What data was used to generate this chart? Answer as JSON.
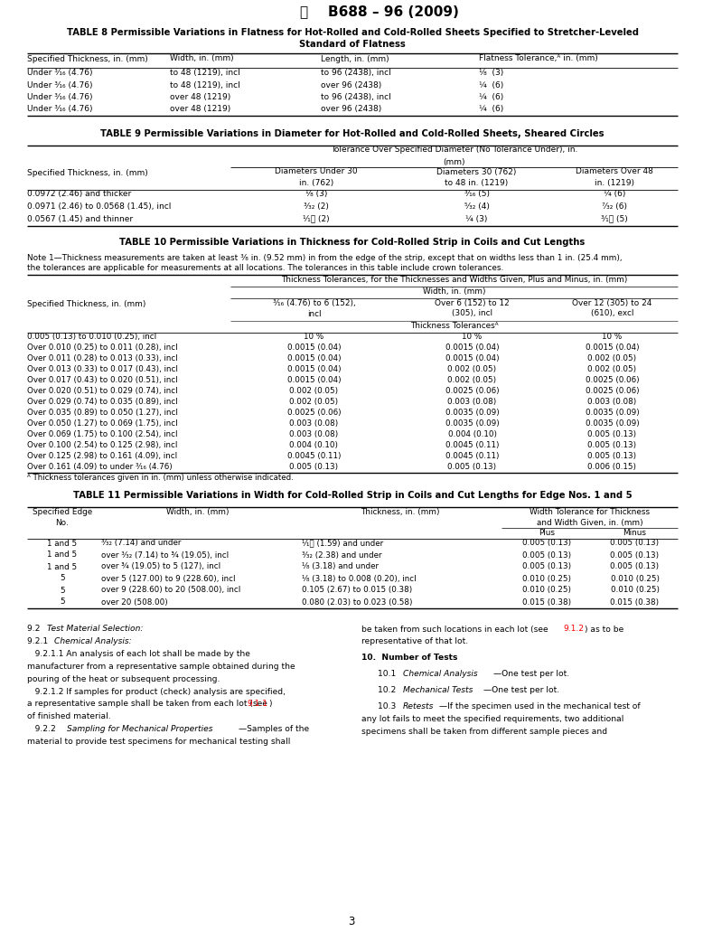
{
  "page_width": 7.78,
  "page_height": 10.41,
  "background_color": "#ffffff",
  "header_title": "B688 – 96 (2009)",
  "page_number": "3",
  "table8_title_line1": "TABLE 8 Permissible Variations in Flatness for Hot-Rolled and Cold-Rolled Sheets Specified to Stretcher-Leveled",
  "table8_title_line2": "Standard of Flatness",
  "table8_headers": [
    "Specified Thickness, in. (mm)",
    "Width, in. (mm)",
    "Length, in. (mm)",
    "Flatness Tolerance,ᴬ in. (mm)"
  ],
  "table8_rows": [
    [
      "Under ³⁄₁₆ (4.76)",
      "to 48 (1219), incl",
      "to 96 (2438), incl",
      "¹⁄₈  (3)"
    ],
    [
      "Under ³⁄₁₆ (4.76)",
      "to 48 (1219), incl",
      "over 96 (2438)",
      "¼  (6)"
    ],
    [
      "Under ³⁄₁₆ (4.76)",
      "over 48 (1219)",
      "to 96 (2438), incl",
      "¼  (6)"
    ],
    [
      "Under ³⁄₁₆ (4.76)",
      "over 48 (1219)",
      "over 96 (2438)",
      "¼  (6)"
    ]
  ],
  "table9_title": "TABLE 9 Permissible Variations in Diameter for Hot-Rolled and Cold-Rolled Sheets, Sheared Circles",
  "table9_col0_header": "Specified Thickness, in. (mm)",
  "table9_span_header_line1": "Tolerance Over Specified Diameter (No Tolerance Under), in.",
  "table9_span_header_line2": "(mm)",
  "table9_sub_headers": [
    "Diameters Under 30\nin. (762)",
    "Diameters 30 (762)\nto 48 in. (1219)",
    "Diameters Over 48\nin. (1219)"
  ],
  "table9_rows": [
    [
      "0.0972 (2.46) and thicker",
      "¹⁄₈ (3)",
      "³⁄₁₆ (5)",
      "¼ (6)"
    ],
    [
      "0.0971 (2.46) to 0.0568 (1.45), incl",
      "³⁄₃₂ (2)",
      "⁵⁄₃₂ (4)",
      "⁷⁄₃₂ (6)"
    ],
    [
      "0.0567 (1.45) and thinner",
      "¹⁄₁⁦ (2)",
      "¼ (3)",
      "³⁄₁⁦ (5)"
    ]
  ],
  "table10_title": "TABLE 10 Permissible Variations in Thickness for Cold-Rolled Strip in Coils and Cut Lengths",
  "table10_note_line1": "Note 1—Thickness measurements are taken at least ³⁄₈ in. (9.52 mm) in from the edge of the strip, except that on widths less than 1 in. (25.4 mm),",
  "table10_note_line2": "the tolerances are applicable for measurements at all locations. The tolerances in this table include crown tolerances.",
  "table10_span_header": "Thickness Tolerances, for the Thicknesses and Widths Given, Plus and Minus, in. (mm)",
  "table10_width_header": "Width, in. (mm)",
  "table10_col0_header": "Specified Thickness, in. (mm)",
  "table10_sub_headers": [
    "³⁄₁₆ (4.76) to 6 (152),\nincl",
    "Over 6 (152) to 12\n(305), incl",
    "Over 12 (305) to 24\n(610), excl"
  ],
  "table10_thick_header": "Thickness Tolerancesᴬ",
  "table10_rows": [
    [
      "0.005 (0.13) to 0.010 (0.25), incl",
      "10 %",
      "10 %",
      "10 %"
    ],
    [
      "Over 0.010 (0.25) to 0.011 (0.28), incl",
      "0.0015 (0.04)",
      "0.0015 (0.04)",
      "0.0015 (0.04)"
    ],
    [
      "Over 0.011 (0.28) to 0.013 (0.33), incl",
      "0.0015 (0.04)",
      "0.0015 (0.04)",
      "0.002 (0.05)"
    ],
    [
      "Over 0.013 (0.33) to 0.017 (0.43), incl",
      "0.0015 (0.04)",
      "0.002 (0.05)",
      "0.002 (0.05)"
    ],
    [
      "Over 0.017 (0.43) to 0.020 (0.51), incl",
      "0.0015 (0.04)",
      "0.002 (0.05)",
      "0.0025 (0.06)"
    ],
    [
      "Over 0.020 (0.51) to 0.029 (0.74), incl",
      "0.002 (0.05)",
      "0.0025 (0.06)",
      "0.0025 (0.06)"
    ],
    [
      "Over 0.029 (0.74) to 0.035 (0.89), incl",
      "0.002 (0.05)",
      "0.003 (0.08)",
      "0.003 (0.08)"
    ],
    [
      "Over 0.035 (0.89) to 0.050 (1.27), incl",
      "0.0025 (0.06)",
      "0.0035 (0.09)",
      "0.0035 (0.09)"
    ],
    [
      "Over 0.050 (1.27) to 0.069 (1.75), incl",
      "0.003 (0.08)",
      "0.0035 (0.09)",
      "0.0035 (0.09)"
    ],
    [
      "Over 0.069 (1.75) to 0.100 (2.54), incl",
      "0.003 (0.08)",
      "0.004 (0.10)",
      "0.005 (0.13)"
    ],
    [
      "Over 0.100 (2.54) to 0.125 (2.98), incl",
      "0.004 (0.10)",
      "0.0045 (0.11)",
      "0.005 (0.13)"
    ],
    [
      "Over 0.125 (2.98) to 0.161 (4.09), incl",
      "0.0045 (0.11)",
      "0.0045 (0.11)",
      "0.005 (0.13)"
    ],
    [
      "Over 0.161 (4.09) to under ³⁄₁₆ (4.76)",
      "0.005 (0.13)",
      "0.005 (0.13)",
      "0.006 (0.15)"
    ]
  ],
  "table10_footnote": "ᴬ Thickness tolerances given in in. (mm) unless otherwise indicated.",
  "table11_title": "TABLE 11 Permissible Variations in Width for Cold-Rolled Strip in Coils and Cut Lengths for Edge Nos. 1 and 5",
  "table11_rows": [
    [
      "1 and 5",
      "³⁄₃₂ (7.14) and under",
      "¹⁄₁⁦ (1.59) and under",
      "0.005 (0.13)",
      "0.005 (0.13)"
    ],
    [
      "1 and 5",
      "over ³⁄₃₂ (7.14) to ¾ (19.05), incl",
      "³⁄₃₂ (2.38) and under",
      "0.005 (0.13)",
      "0.005 (0.13)"
    ],
    [
      "1 and 5",
      "over ¾ (19.05) to 5 (127), incl",
      "¹⁄₈ (3.18) and under",
      "0.005 (0.13)",
      "0.005 (0.13)"
    ],
    [
      "5",
      "over 5 (127.00) to 9 (228.60), incl",
      "¹⁄₈ (3.18) to 0.008 (0.20), incl",
      "0.010 (0.25)",
      "0.010 (0.25)"
    ],
    [
      "5",
      "over 9 (228.60) to 20 (508.00), incl",
      "0.105 (2.67) to 0.015 (0.38)",
      "0.010 (0.25)",
      "0.010 (0.25)"
    ],
    [
      "5",
      "over 20 (508.00)",
      "0.080 (2.03) to 0.023 (0.58)",
      "0.015 (0.38)",
      "0.015 (0.38)"
    ]
  ]
}
